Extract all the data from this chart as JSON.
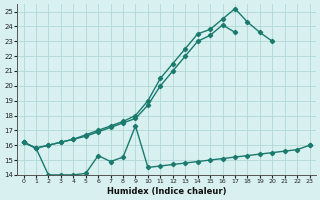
{
  "xlabel": "Humidex (Indice chaleur)",
  "x_values": [
    0,
    1,
    2,
    3,
    4,
    5,
    6,
    7,
    8,
    9,
    10,
    11,
    12,
    13,
    14,
    15,
    16,
    17,
    18,
    19,
    20,
    21,
    22,
    23
  ],
  "line1": [
    16.2,
    15.8,
    16.0,
    16.2,
    16.4,
    16.7,
    17.0,
    17.3,
    17.6,
    18.0,
    19.0,
    20.5,
    21.5,
    22.5,
    23.5,
    23.8,
    24.5,
    25.2,
    24.3,
    23.6,
    23.0,
    null,
    null,
    16.0
  ],
  "line2": [
    16.2,
    15.8,
    16.0,
    16.2,
    16.4,
    16.6,
    16.9,
    17.2,
    17.5,
    17.8,
    18.7,
    20.0,
    21.0,
    22.0,
    23.0,
    23.4,
    24.1,
    23.6,
    null,
    null,
    null,
    null,
    null,
    null
  ],
  "line3": [
    16.2,
    15.8,
    14.0,
    14.0,
    14.0,
    14.1,
    15.3,
    14.9,
    15.2,
    17.3,
    14.5,
    14.6,
    14.7,
    14.8,
    14.9,
    15.0,
    15.1,
    15.2,
    15.3,
    15.4,
    15.5,
    15.6,
    15.7,
    16.0
  ],
  "line_color": "#1a7a6e",
  "bg_color": "#d8f0f0",
  "grid_color": "#b0d8d8",
  "ylim": [
    14,
    25.5
  ],
  "xlim": [
    -0.5,
    23.5
  ],
  "yticks": [
    14,
    15,
    16,
    17,
    18,
    19,
    20,
    21,
    22,
    23,
    24,
    25
  ],
  "xticks": [
    0,
    1,
    2,
    3,
    4,
    5,
    6,
    7,
    8,
    9,
    10,
    11,
    12,
    13,
    14,
    15,
    16,
    17,
    18,
    19,
    20,
    21,
    22,
    23
  ],
  "marker": "D",
  "markersize": 2.2,
  "linewidth": 1.0
}
